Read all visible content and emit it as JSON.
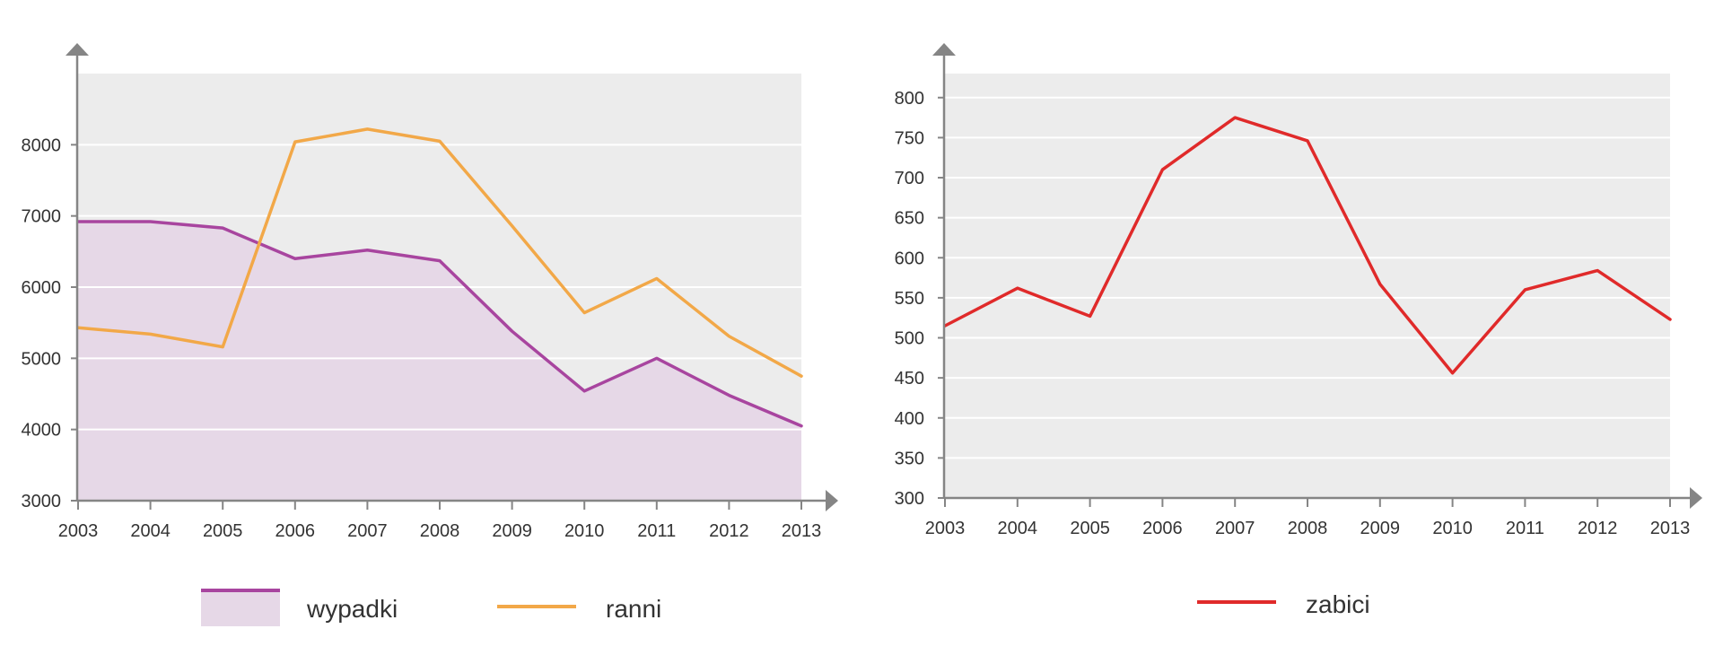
{
  "colors": {
    "plot_bg": "#ececec",
    "grid": "#ffffff",
    "axis": "#858585",
    "wypadki_line": "#a8459f",
    "wypadki_fill": "#e6d8e7",
    "ranni_line": "#f2a848",
    "zabici_line": "#e02a2a"
  },
  "chart_data": [
    {
      "type": "line",
      "x": [
        "2003",
        "2004",
        "2005",
        "2006",
        "2007",
        "2008",
        "2009",
        "2010",
        "2011",
        "2012",
        "2013"
      ],
      "series": [
        {
          "name": "wypadki",
          "style": "area",
          "values": [
            6920,
            6920,
            6830,
            6400,
            6520,
            6370,
            5380,
            4540,
            5000,
            4480,
            4050
          ]
        },
        {
          "name": "ranni",
          "style": "line",
          "values": [
            5430,
            5340,
            5160,
            8040,
            8220,
            8050,
            6860,
            5640,
            6120,
            5310,
            4750
          ]
        }
      ],
      "yticks": [
        "3000",
        "4000",
        "5000",
        "6000",
        "7000",
        "8000"
      ],
      "ylim": [
        3000,
        9000
      ],
      "grid": true,
      "legend": "bottom"
    },
    {
      "type": "line",
      "x": [
        "2003",
        "2004",
        "2005",
        "2006",
        "2007",
        "2008",
        "2009",
        "2010",
        "2011",
        "2012",
        "2013"
      ],
      "series": [
        {
          "name": "zabici",
          "style": "line",
          "values": [
            515,
            562,
            527,
            710,
            775,
            746,
            567,
            456,
            560,
            584,
            523
          ]
        }
      ],
      "yticks": [
        "300",
        "350",
        "400",
        "450",
        "500",
        "550",
        "600",
        "650",
        "700",
        "750",
        "800"
      ],
      "ylim": [
        300,
        830
      ],
      "grid": true,
      "legend": "bottom"
    }
  ]
}
